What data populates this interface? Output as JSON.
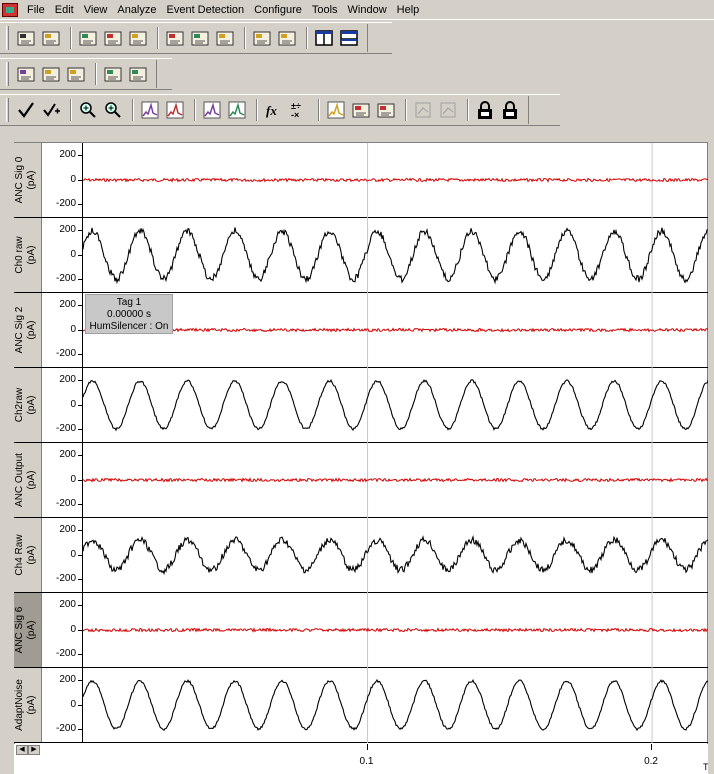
{
  "menu": [
    "File",
    "Edit",
    "View",
    "Analyze",
    "Event Detection",
    "Configure",
    "Tools",
    "Window",
    "Help"
  ],
  "toolbars": {
    "row1_icons": [
      "open-icon",
      "open-data-icon",
      "import-icon",
      "export-icon",
      "copy-icon",
      "save-icon",
      "print-icon",
      "print-preview-icon",
      "properties-icon",
      "inactive-icon",
      "layout-horizontal-icon",
      "layout-vertical-icon"
    ],
    "row2_icons": [
      "channel-down-icon",
      "channel-up-icon",
      "channel-list-icon",
      "marker-icon",
      "edit-marker-icon"
    ],
    "row3_icons": [
      "check-icon",
      "check-plus-icon",
      "zoom-in-icon",
      "zoom-fit-icon",
      "trace-icon",
      "spike-icon",
      "histogram-icon",
      "decay-icon",
      "function-icon",
      "arithmetic-icon",
      "peak-icon",
      "sum-icon",
      "table-icon",
      "disabled-a-icon",
      "disabled-b-icon",
      "lock-12-icon",
      "lock-34-icon"
    ]
  },
  "channels": [
    {
      "label": "ANC Sig 0",
      "unit": "(pA)",
      "ticks": [
        "200",
        "0",
        "-200"
      ],
      "color": "#d00000",
      "kind": "noise",
      "selected": false
    },
    {
      "label": "Ch0 raw",
      "unit": "(pA)",
      "ticks": [
        "200",
        "0",
        "-200"
      ],
      "color": "#000000",
      "kind": "noisy-sine",
      "selected": false
    },
    {
      "label": "ANC Sig 2",
      "unit": "(pA)",
      "ticks": [
        "200",
        "0",
        "-200"
      ],
      "color": "#d00000",
      "kind": "noise",
      "selected": false
    },
    {
      "label": "Ch2raw",
      "unit": "(pA)",
      "ticks": [
        "200",
        "0",
        "-200"
      ],
      "color": "#000000",
      "kind": "sine",
      "selected": false
    },
    {
      "label": "ANC Output",
      "unit": "(pA)",
      "ticks": [
        "200",
        "0",
        "-200"
      ],
      "color": "#d00000",
      "kind": "noise",
      "selected": false
    },
    {
      "label": "Ch4 Raw",
      "unit": "(pA)",
      "ticks": [
        "200",
        "0",
        "-200"
      ],
      "color": "#000000",
      "kind": "small-sine",
      "selected": false
    },
    {
      "label": "ANC Sig 6",
      "unit": "(pA)",
      "ticks": [
        "200",
        "0",
        "-200"
      ],
      "color": "#d00000",
      "kind": "noise",
      "selected": true
    },
    {
      "label": "AdaptNoise",
      "unit": "(pA)",
      "ticks": [
        "200",
        "0",
        "-200"
      ],
      "color": "#000000",
      "kind": "sine",
      "selected": false
    }
  ],
  "tag": {
    "line1": "Tag 1",
    "line2": "0.00000 s",
    "line3": "HumSilencer : On"
  },
  "xaxis": {
    "ticks": [
      {
        "value": 0.1,
        "label": "0.1"
      },
      {
        "value": 0.2,
        "label": "0.2"
      }
    ],
    "max": 0.22,
    "label": "Ti"
  },
  "signal": {
    "cycles_per_view": 13.2
  }
}
